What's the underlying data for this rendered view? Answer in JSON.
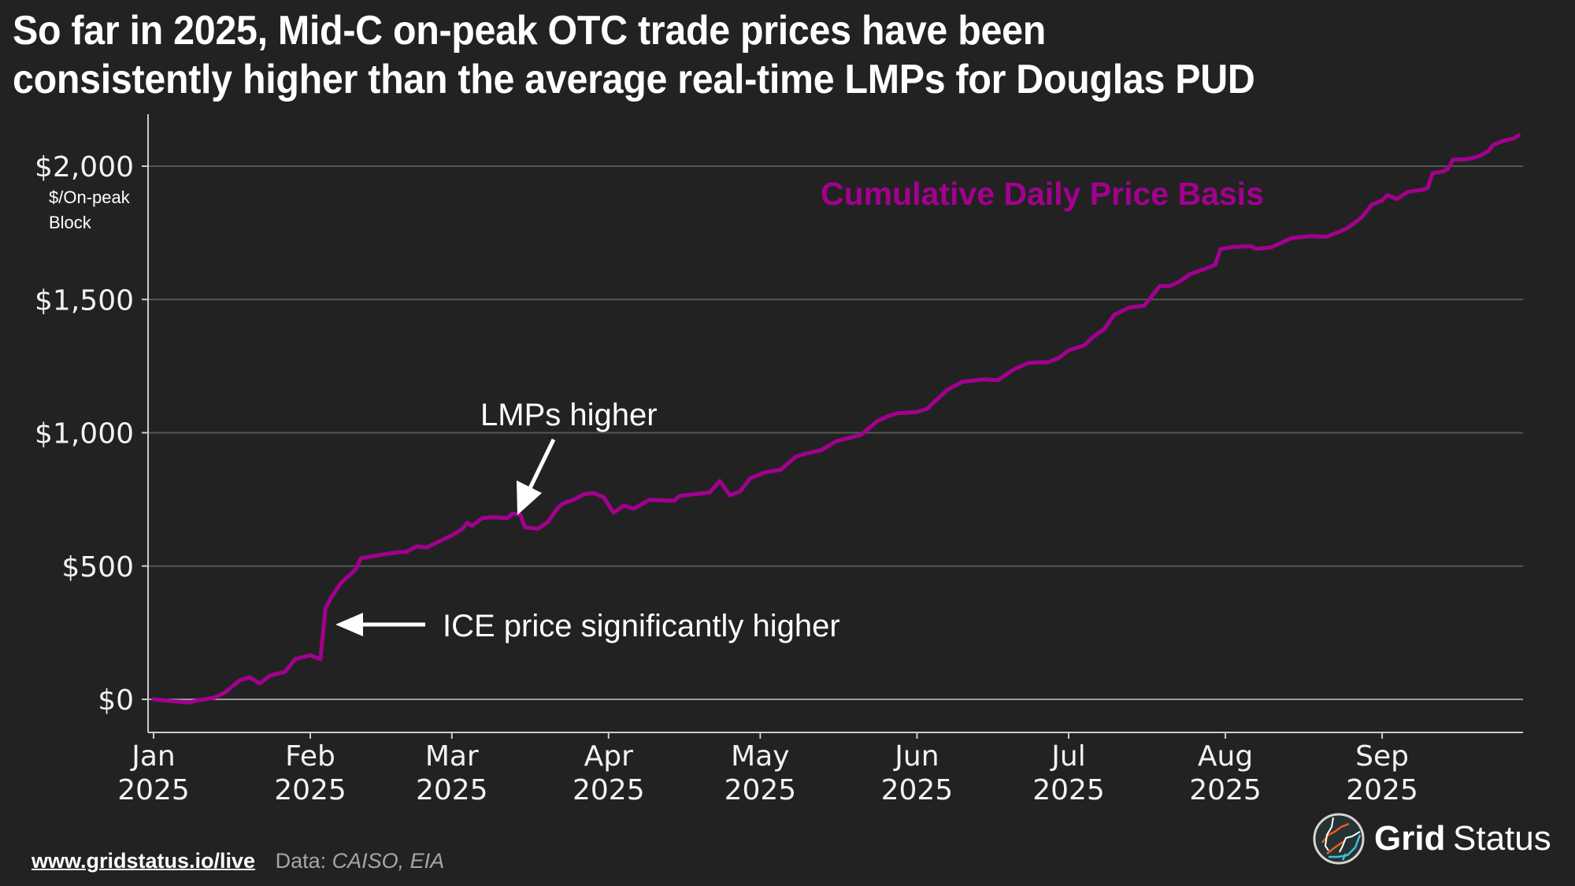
{
  "title": {
    "line1": "So far in 2025, Mid-C on-peak OTC trade prices have been",
    "line2": "consistently higher than the average real-time LMPs for Douglas PUD"
  },
  "footer": {
    "url": "www.gridstatus.io/live",
    "source_label": "Data:",
    "source": "CAISO, EIA"
  },
  "logo": {
    "bold": "Grid",
    "regular": "Status"
  },
  "colors": {
    "background": "#222222",
    "series": "#a3008f",
    "gridline": "#555555",
    "axis": "#cccccc",
    "text": "#ffffff"
  },
  "chart_data": {
    "type": "line",
    "title": "So far in 2025, Mid-C on-peak OTC trade prices have been consistently higher than the average real-time LMPs for Douglas PUD",
    "xlabel": "",
    "ylabel": "$/On-peak Block",
    "ylabel_lines": [
      "$/On-peak",
      "Block"
    ],
    "xlim_days": [
      0,
      270
    ],
    "ylim": [
      -120,
      2230
    ],
    "grid": "horizontal",
    "yticks": [
      0,
      500,
      1000,
      1500,
      2000
    ],
    "ytick_labels": [
      "$0",
      "$500",
      "$1,000",
      "$1,500",
      "$2,000"
    ],
    "xticks": [
      {
        "day": 0,
        "month": "Jan",
        "year": "2025"
      },
      {
        "day": 31,
        "month": "Feb",
        "year": "2025"
      },
      {
        "day": 59,
        "month": "Mar",
        "year": "2025"
      },
      {
        "day": 90,
        "month": "Apr",
        "year": "2025"
      },
      {
        "day": 120,
        "month": "May",
        "year": "2025"
      },
      {
        "day": 151,
        "month": "Jun",
        "year": "2025"
      },
      {
        "day": 181,
        "month": "Jul",
        "year": "2025"
      },
      {
        "day": 212,
        "month": "Aug",
        "year": "2025"
      },
      {
        "day": 243,
        "month": "Sep",
        "year": "2025"
      }
    ],
    "series": [
      {
        "name": "Cumulative Daily Price Basis",
        "x_unit": "days since 2025-01-01",
        "points": [
          [
            0,
            0
          ],
          [
            5,
            -9
          ],
          [
            7,
            -12
          ],
          [
            9,
            -3
          ],
          [
            12,
            6
          ],
          [
            14,
            24
          ],
          [
            17,
            71
          ],
          [
            19,
            83
          ],
          [
            21,
            59
          ],
          [
            23,
            89
          ],
          [
            26,
            103
          ],
          [
            28,
            151
          ],
          [
            31,
            165
          ],
          [
            33,
            151
          ],
          [
            34,
            340
          ],
          [
            35,
            378
          ],
          [
            37,
            435
          ],
          [
            40,
            488
          ],
          [
            41,
            529
          ],
          [
            43,
            536
          ],
          [
            48,
            551
          ],
          [
            50,
            553
          ],
          [
            52,
            574
          ],
          [
            54,
            570
          ],
          [
            57,
            597
          ],
          [
            59,
            615
          ],
          [
            61,
            638
          ],
          [
            62,
            662
          ],
          [
            63,
            651
          ],
          [
            65,
            680
          ],
          [
            67,
            683
          ],
          [
            70,
            680
          ],
          [
            71,
            697
          ],
          [
            72.5,
            694
          ],
          [
            73.5,
            645
          ],
          [
            76,
            640
          ],
          [
            78,
            665
          ],
          [
            80,
            720
          ],
          [
            81,
            735
          ],
          [
            83,
            748
          ],
          [
            85,
            768
          ],
          [
            87,
            775
          ],
          [
            89,
            758
          ],
          [
            91,
            700
          ],
          [
            93,
            727
          ],
          [
            95,
            715
          ],
          [
            98,
            748
          ],
          [
            103,
            745
          ],
          [
            104,
            763
          ],
          [
            110,
            776
          ],
          [
            112,
            819
          ],
          [
            114,
            765
          ],
          [
            116,
            780
          ],
          [
            118,
            829
          ],
          [
            121,
            852
          ],
          [
            124,
            861
          ],
          [
            127,
            910
          ],
          [
            129,
            922
          ],
          [
            132,
            934
          ],
          [
            135,
            968
          ],
          [
            138,
            983
          ],
          [
            140,
            993
          ],
          [
            143,
            1042
          ],
          [
            145,
            1060
          ],
          [
            147,
            1073
          ],
          [
            151,
            1078
          ],
          [
            153,
            1090
          ],
          [
            157,
            1161
          ],
          [
            160,
            1191
          ],
          [
            164,
            1200
          ],
          [
            167,
            1197
          ],
          [
            170,
            1236
          ],
          [
            173,
            1262
          ],
          [
            177,
            1265
          ],
          [
            179,
            1280
          ],
          [
            181,
            1309
          ],
          [
            184,
            1327
          ],
          [
            186,
            1362
          ],
          [
            188,
            1388
          ],
          [
            190,
            1442
          ],
          [
            193,
            1470
          ],
          [
            196,
            1477
          ],
          [
            199,
            1550
          ],
          [
            201,
            1550
          ],
          [
            203,
            1568
          ],
          [
            205,
            1595
          ],
          [
            208,
            1615
          ],
          [
            210,
            1630
          ],
          [
            211,
            1688
          ],
          [
            213,
            1696
          ],
          [
            217,
            1700
          ],
          [
            218,
            1690
          ],
          [
            221,
            1695
          ],
          [
            223,
            1712
          ],
          [
            225,
            1730
          ],
          [
            229,
            1738
          ],
          [
            232,
            1735
          ],
          [
            234,
            1750
          ],
          [
            236,
            1766
          ],
          [
            238,
            1794
          ],
          [
            239,
            1809
          ],
          [
            241,
            1856
          ],
          [
            243,
            1871
          ],
          [
            244,
            1891
          ],
          [
            246,
            1877
          ],
          [
            248,
            1903
          ],
          [
            251,
            1912
          ],
          [
            252,
            1918
          ],
          [
            253,
            1974
          ],
          [
            255,
            1980
          ],
          [
            256,
            1989
          ],
          [
            257,
            2024
          ],
          [
            260,
            2027
          ],
          [
            262,
            2036
          ],
          [
            264,
            2056
          ],
          [
            265,
            2080
          ],
          [
            267,
            2095
          ],
          [
            269,
            2104
          ],
          [
            270,
            2116
          ]
        ]
      }
    ],
    "annotations": [
      {
        "text": "Cumulative Daily Price Basis",
        "type": "series-label",
        "color": "#a3008f"
      },
      {
        "text": "LMPs higher",
        "arrow_to_day": 73.5,
        "arrow_to_value": 650,
        "arrow_direction": "down-left"
      },
      {
        "text": "ICE price significantly higher",
        "arrow_to_day": 34.5,
        "arrow_to_value": 250,
        "arrow_direction": "left"
      }
    ]
  }
}
